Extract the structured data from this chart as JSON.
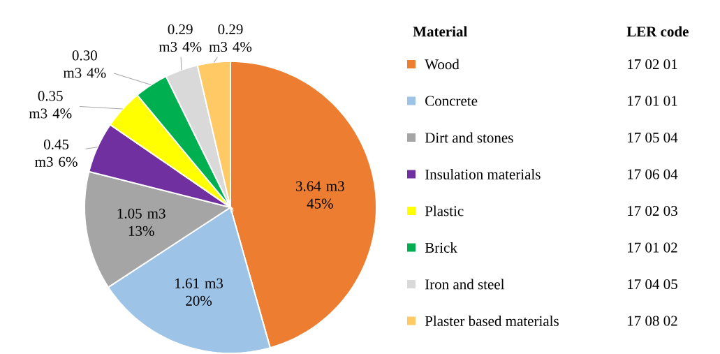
{
  "chart_data": {
    "type": "pie",
    "legend_title": "Material",
    "categories": [
      "Wood",
      "Concrete",
      "Dirt and stones",
      "Insulation materials",
      "Plastic",
      "Brick",
      "Iron and steel",
      "Plaster based materials"
    ],
    "values": [
      3.64,
      1.61,
      1.05,
      0.45,
      0.35,
      0.3,
      0.29,
      0.29
    ],
    "value_labels": [
      "3.64 m3 45%",
      "1.61 m3 20%",
      "1.05 m3 13%",
      "0.45 m3 6%",
      "0.35 m3 4%",
      "0.30 m3 4%",
      "0.29 m3 4%",
      "0.29 m3 4%"
    ],
    "colors": [
      "#ed7d31",
      "#9dc3e6",
      "#a5a5a5",
      "#7030a0",
      "#ffff00",
      "#00b050",
      "#d9d9d9",
      "#ffc966"
    ],
    "legend": "right",
    "annotations": [
      "LER code",
      "17 02 01",
      "17 01 01",
      "17 05 04",
      "17 06 04",
      "17 02 03",
      "17 01 02",
      "17 04 05",
      "17 08 02"
    ]
  }
}
